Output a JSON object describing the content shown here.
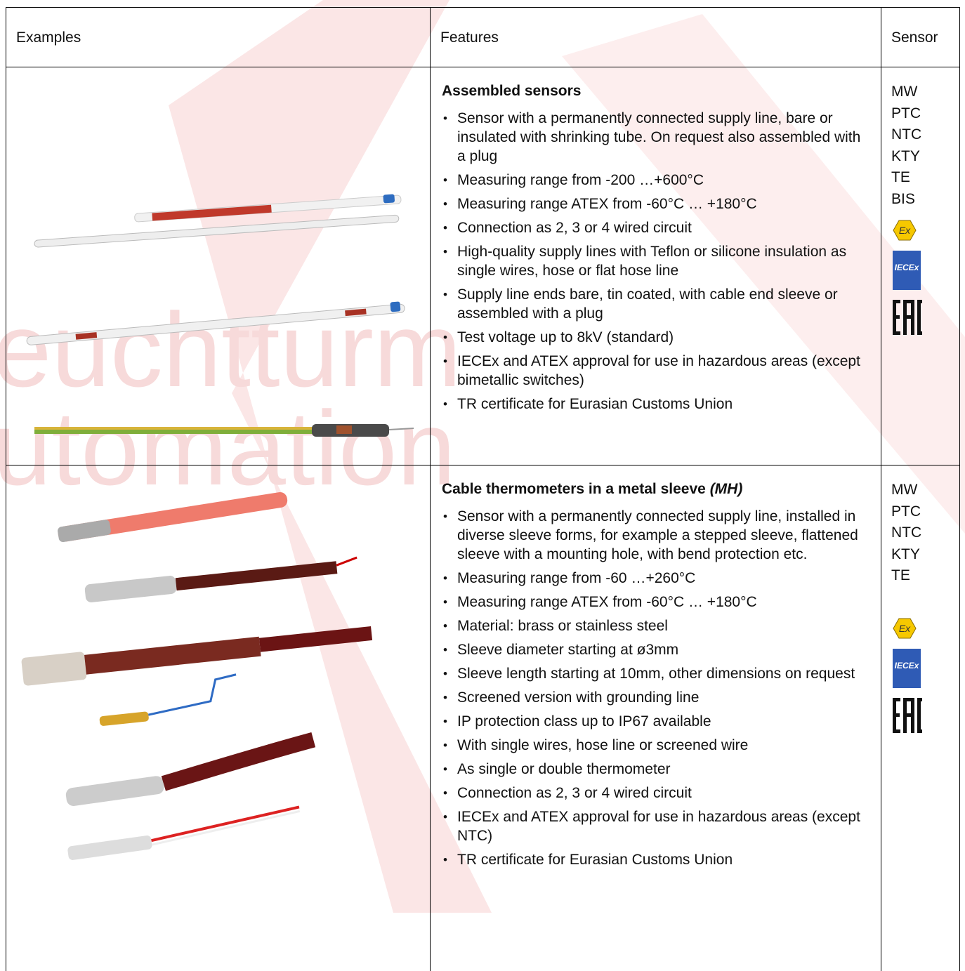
{
  "watermark": [
    "euchtturm",
    "utomation"
  ],
  "table": {
    "headers": [
      "Examples",
      "Features",
      "Sensor"
    ],
    "rows": [
      {
        "title": "Assembled sensors",
        "bullets": [
          "Sensor with a permanently connected supply line, bare or insulated with shrinking tube. On request also assembled with a plug",
          "Measuring range from -200 …+600°C",
          "Measuring range ATEX from  -60°C … +180°C",
          "Connection as 2, 3 or 4 wired circuit",
          "High-quality supply lines with Teflon or silicone insulation as single wires, hose or flat hose line",
          "Supply line ends bare, tin coated, with cable end sleeve or assembled with a plug",
          "Test voltage up to 8kV (standard)",
          "IECEx and ATEX approval for use in hazardous areas (except  bimetallic switches)",
          "TR certificate for Eurasian Customs Union"
        ],
        "sensors": [
          "MW",
          "PTC",
          "NTC",
          "KTY",
          "TE",
          "BIS"
        ],
        "logos": [
          "Ex",
          "IECEx"
        ]
      },
      {
        "title": "Cable thermometers in a metal sleeve",
        "title_suffix": "(MH)",
        "bullets": [
          "Sensor with a permanently connected supply line, installed in diverse sleeve forms, for example a stepped sleeve, flattened sleeve with a mounting hole, with bend protection etc.",
          "Measuring range from -60 …+260°C",
          "Measuring range ATEX from  -60°C … +180°C",
          "Material: brass or stainless steel",
          "Sleeve diameter starting at ø3mm",
          "Sleeve length starting at 10mm, other dimensions on request",
          "Screened version with grounding line",
          "IP protection class up to IP67 available",
          "With single wires, hose line or screened wire",
          "As single or double thermometer",
          "Connection as 2, 3 or 4 wired circuit",
          "IECEx and ATEX approval for use in hazardous areas (except NTC)",
          "TR certificate for Eurasian Customs Union"
        ],
        "sensors": [
          "MW",
          "PTC",
          "NTC",
          "KTY",
          "TE"
        ],
        "logos": [
          "Ex",
          "IECEx"
        ]
      }
    ]
  }
}
